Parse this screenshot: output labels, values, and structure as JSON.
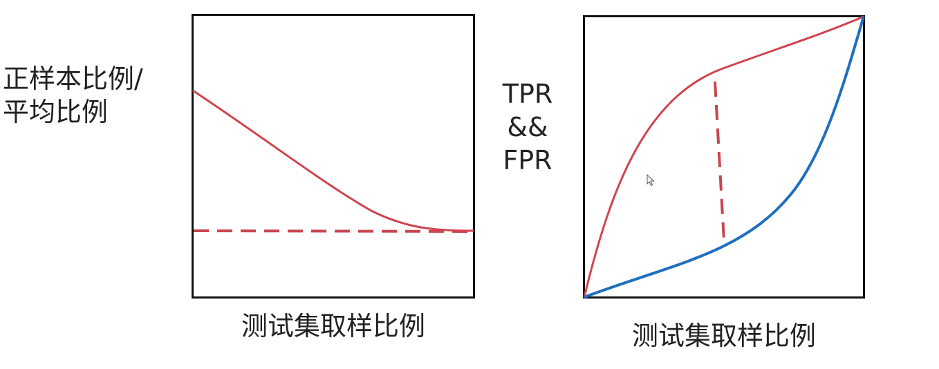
{
  "left_panel": {
    "ylabel_line1": "正样本比例/",
    "ylabel_line2": "平均比例",
    "xlabel": "测试集取样比例",
    "curve_color": "#d0434f",
    "dashed_color": "#c8464f"
  },
  "right_panel": {
    "ylabel_line1": "TPR",
    "ylabel_line2": "&&",
    "ylabel_line3": "FPR",
    "xlabel": "测试集取样比例",
    "tpr_color": "#d0434f",
    "fpr_color": "#1f6fbf",
    "dashed_color": "#c8464f"
  },
  "icons": {
    "cursor": "mouse-pointer-icon"
  }
}
